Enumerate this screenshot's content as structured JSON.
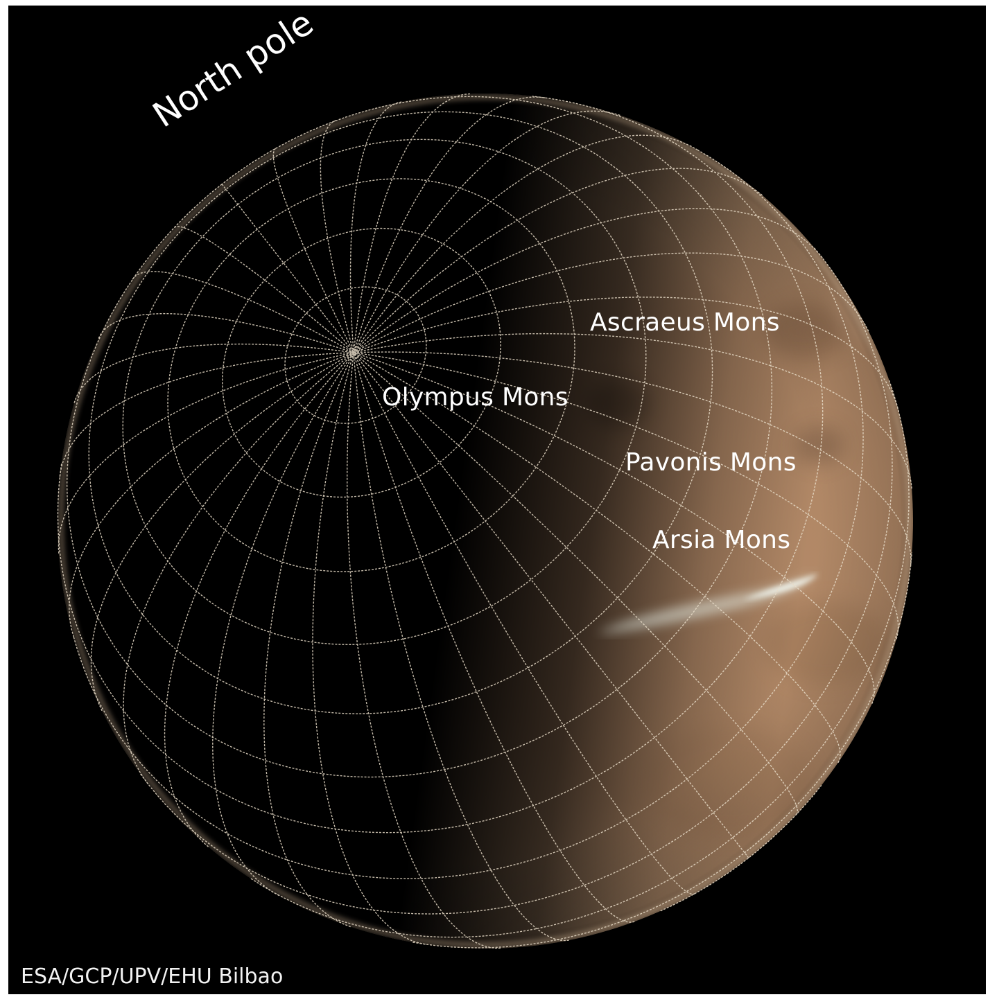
{
  "image": {
    "background_color": "#000000",
    "planet_dayside_color": "#b08868",
    "planet_limb_color": "#d8b89a",
    "grid_color": "#e8dcc8",
    "cloud_color": "#e8f2ea"
  },
  "labels": {
    "north_pole": "North pole",
    "ascraeus": "Ascraeus Mons",
    "olympus": "Olympus Mons",
    "pavonis": "Pavonis Mons",
    "arsia": "Arsia Mons"
  },
  "credit": "ESA/GCP/UPV/EHU Bilbao"
}
